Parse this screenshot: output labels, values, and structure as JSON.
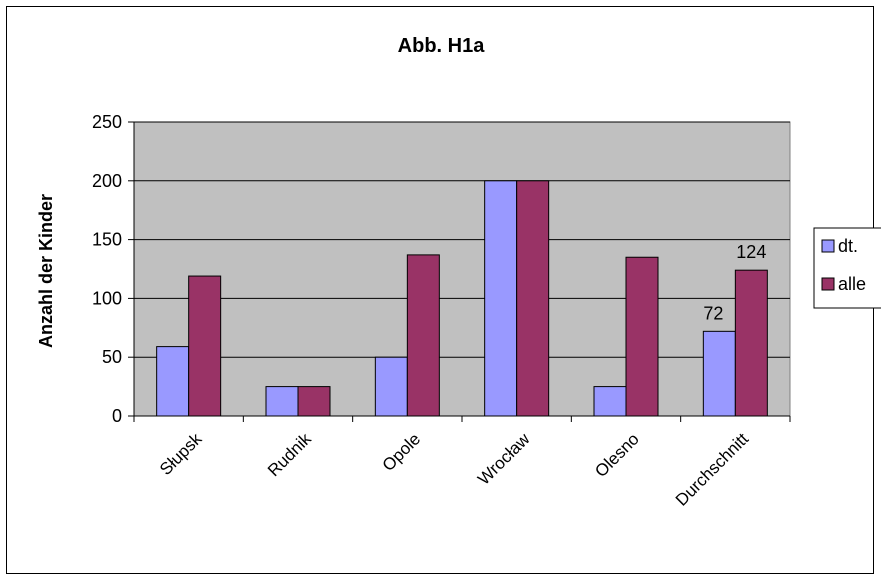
{
  "chart_data": {
    "type": "bar",
    "title": "Abb. H1a",
    "xlabel": "",
    "ylabel": "Anzahl der Kinder",
    "ylim": [
      0,
      250
    ],
    "yticks": [
      0,
      50,
      100,
      150,
      200,
      250
    ],
    "grid": true,
    "legend_position": "right",
    "categories": [
      "Słupsk",
      "Rudnik",
      "Opole",
      "Wrocław",
      "Olesno",
      "Durchschnitt"
    ],
    "series": [
      {
        "name": "dt.",
        "color": "#9999ff",
        "values": [
          59,
          25,
          50,
          200,
          25,
          72
        ],
        "data_labels": [
          "",
          "",
          "",
          "",
          "",
          "72"
        ]
      },
      {
        "name": "alle",
        "color": "#993366",
        "values": [
          119,
          25,
          137,
          200,
          135,
          124
        ],
        "data_labels": [
          "",
          "",
          "",
          "",
          "",
          "124"
        ]
      }
    ],
    "colors": {
      "plot_background": "#c0c0c0",
      "gridline": "#000000"
    }
  }
}
